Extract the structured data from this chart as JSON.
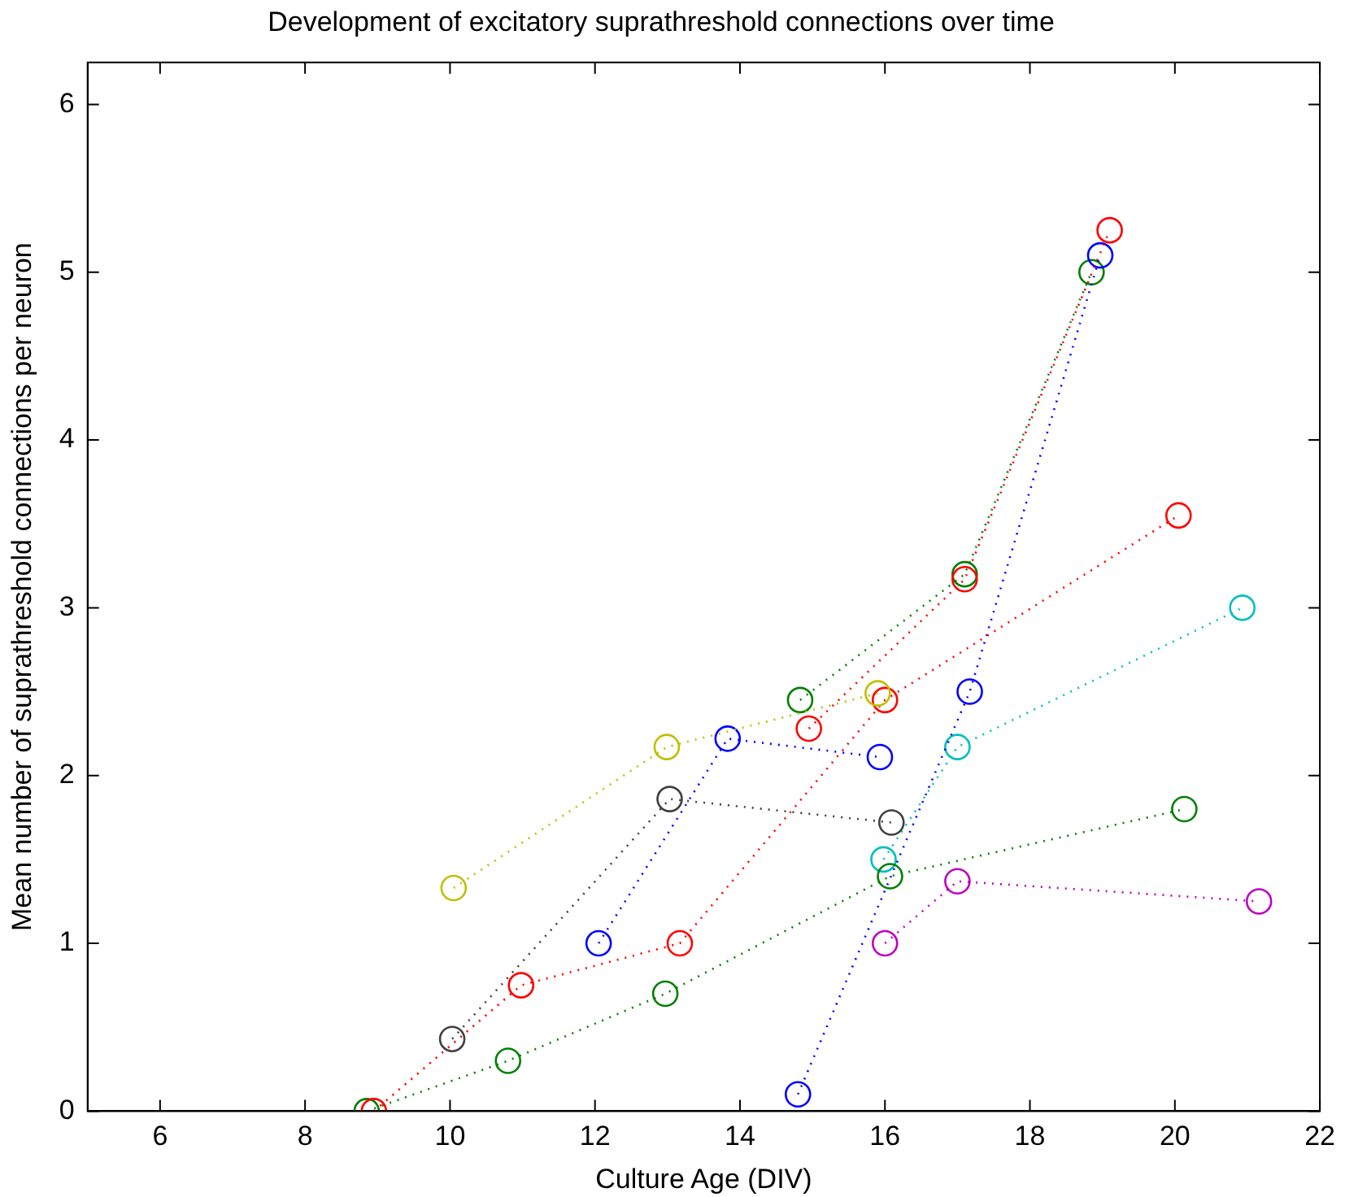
{
  "chart_data": {
    "type": "line",
    "title": "Development of excitatory suprathreshold connections over time",
    "xlabel": "Culture Age (DIV)",
    "ylabel": "Mean number of suprathreshold connections per neuron",
    "xlim": [
      5,
      22
    ],
    "xticks": [
      6,
      8,
      10,
      12,
      14,
      16,
      18,
      20,
      22
    ],
    "ylim": [
      0,
      6.25
    ],
    "yticks": [
      0,
      1,
      2,
      3,
      4,
      5,
      6
    ],
    "grid": false,
    "legend": false,
    "marker": "circle",
    "line_style": "dotted",
    "series": [
      {
        "color": "#bfbf00",
        "x": [
          10.05,
          12.99,
          15.9
        ],
        "values": [
          1.33,
          2.17,
          2.49
        ]
      },
      {
        "color": "#404040",
        "x": [
          10.03,
          13.03,
          16.09
        ],
        "values": [
          0.43,
          1.86,
          1.72
        ]
      },
      {
        "color": "#ff0000",
        "x": [
          8.95,
          10.98,
          13.17,
          16.0,
          20.05
        ],
        "values": [
          0,
          0.75,
          1.0,
          2.45,
          3.55
        ]
      },
      {
        "color": "#ff0000",
        "x": [
          14.95,
          17.1,
          19.1
        ],
        "values": [
          2.28,
          3.17,
          5.25
        ]
      },
      {
        "color": "#0000ff",
        "x": [
          12.05,
          13.83,
          15.93
        ],
        "values": [
          1.0,
          2.22,
          2.11
        ]
      },
      {
        "color": "#0000ff",
        "x": [
          14.8,
          17.17,
          18.97
        ],
        "values": [
          0.1,
          2.5,
          5.1
        ]
      },
      {
        "color": "#008000",
        "x": [
          8.85,
          10.8,
          12.97,
          16.07,
          20.13
        ],
        "values": [
          0,
          0.3,
          0.7,
          1.4,
          1.8
        ]
      },
      {
        "color": "#008000",
        "x": [
          14.83,
          17.1,
          18.85
        ],
        "values": [
          2.45,
          3.2,
          5.0
        ]
      },
      {
        "color": "#00bfbf",
        "x": [
          15.98,
          17.0,
          20.93
        ],
        "values": [
          1.5,
          2.17,
          3.0
        ]
      },
      {
        "color": "#bf00bf",
        "x": [
          16.0,
          17.0,
          21.16
        ],
        "values": [
          1.0,
          1.37,
          1.25
        ]
      }
    ]
  }
}
